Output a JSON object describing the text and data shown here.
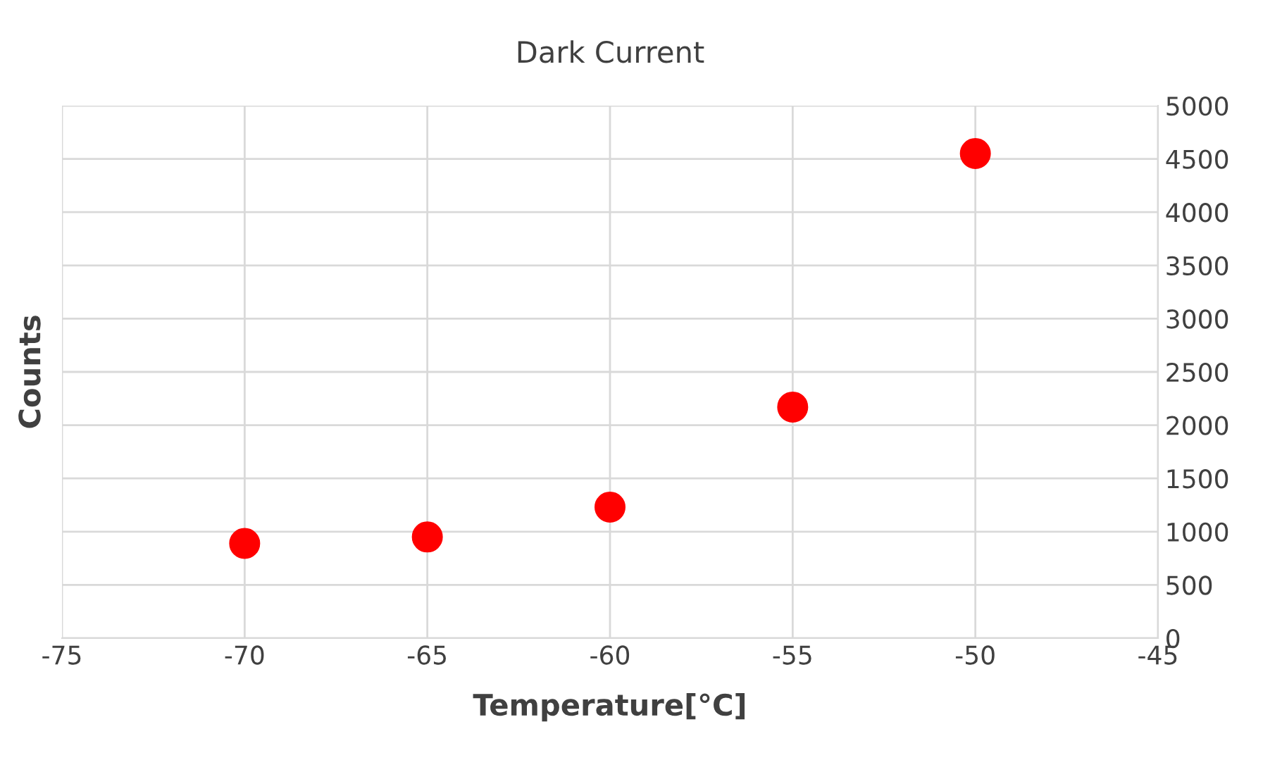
{
  "chart_data": {
    "type": "scatter",
    "title": "Dark Current",
    "xlabel": "Temperature[°C]",
    "ylabel": "Counts",
    "x": [
      -70,
      -65,
      -60,
      -55,
      -50
    ],
    "series": [
      {
        "color": "#ff0000",
        "values": [
          890,
          950,
          1230,
          2170,
          4550
        ]
      }
    ],
    "xlim": [
      -75,
      -45
    ],
    "xticks": [
      -75,
      -70,
      -65,
      -60,
      -55,
      -50,
      -45
    ],
    "ylim": [
      0,
      5000
    ],
    "yticks": [
      0,
      500,
      1000,
      1500,
      2000,
      2500,
      3000,
      3500,
      4000,
      4500,
      5000
    ],
    "grid": true,
    "marker": "circle",
    "legend": false
  }
}
